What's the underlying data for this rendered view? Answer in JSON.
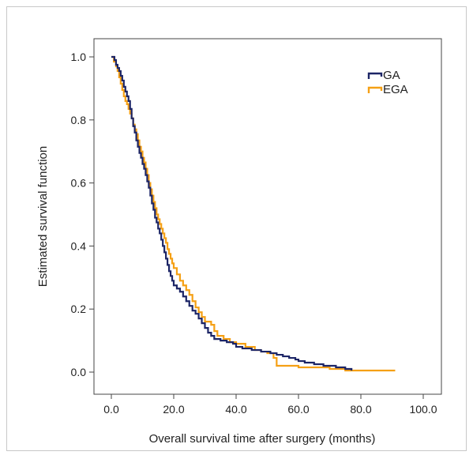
{
  "chart_data": {
    "type": "line",
    "subtype": "kaplan-meier-step",
    "title": "",
    "xlabel": "Overall survival time after surgery (months)",
    "ylabel": "Estimated survival function",
    "xlim": [
      0,
      100
    ],
    "ylim": [
      0,
      1
    ],
    "x_ticks": [
      "0.0",
      "20.0",
      "40.0",
      "60.0",
      "80.0",
      "100.0"
    ],
    "y_ticks": [
      "0.0",
      "0.2",
      "0.4",
      "0.6",
      "0.8",
      "1.0"
    ],
    "grid": false,
    "legend_position": "top-right",
    "series": [
      {
        "name": "GA",
        "color": "#1c2566",
        "points": [
          [
            0,
            1.0
          ],
          [
            1,
            0.99
          ],
          [
            1.5,
            0.975
          ],
          [
            2,
            0.965
          ],
          [
            2.5,
            0.955
          ],
          [
            3,
            0.94
          ],
          [
            3.5,
            0.925
          ],
          [
            4,
            0.905
          ],
          [
            4.5,
            0.89
          ],
          [
            5,
            0.875
          ],
          [
            5.5,
            0.86
          ],
          [
            6,
            0.835
          ],
          [
            6.5,
            0.805
          ],
          [
            7,
            0.78
          ],
          [
            7.5,
            0.76
          ],
          [
            8,
            0.735
          ],
          [
            8.5,
            0.715
          ],
          [
            9,
            0.695
          ],
          [
            9.5,
            0.68
          ],
          [
            10,
            0.66
          ],
          [
            10.5,
            0.645
          ],
          [
            11,
            0.625
          ],
          [
            11.5,
            0.605
          ],
          [
            12,
            0.585
          ],
          [
            12.5,
            0.56
          ],
          [
            13,
            0.535
          ],
          [
            13.5,
            0.515
          ],
          [
            14,
            0.49
          ],
          [
            14.5,
            0.475
          ],
          [
            15,
            0.455
          ],
          [
            15.5,
            0.44
          ],
          [
            16,
            0.42
          ],
          [
            16.5,
            0.4
          ],
          [
            17,
            0.38
          ],
          [
            17.5,
            0.36
          ],
          [
            18,
            0.34
          ],
          [
            18.5,
            0.32
          ],
          [
            19,
            0.305
          ],
          [
            19.5,
            0.29
          ],
          [
            20,
            0.275
          ],
          [
            21,
            0.265
          ],
          [
            22,
            0.255
          ],
          [
            23,
            0.24
          ],
          [
            24,
            0.225
          ],
          [
            25,
            0.21
          ],
          [
            26,
            0.195
          ],
          [
            27,
            0.185
          ],
          [
            28,
            0.17
          ],
          [
            29,
            0.155
          ],
          [
            30,
            0.14
          ],
          [
            31,
            0.125
          ],
          [
            32,
            0.115
          ],
          [
            33,
            0.105
          ],
          [
            35,
            0.1
          ],
          [
            37,
            0.095
          ],
          [
            39,
            0.09
          ],
          [
            40,
            0.08
          ],
          [
            42,
            0.075
          ],
          [
            45,
            0.07
          ],
          [
            48,
            0.065
          ],
          [
            51,
            0.06
          ],
          [
            53,
            0.055
          ],
          [
            55,
            0.05
          ],
          [
            57,
            0.045
          ],
          [
            59,
            0.04
          ],
          [
            60,
            0.035
          ],
          [
            62,
            0.03
          ],
          [
            65,
            0.025
          ],
          [
            68,
            0.02
          ],
          [
            72,
            0.015
          ],
          [
            75,
            0.01
          ],
          [
            77,
            0.005
          ]
        ]
      },
      {
        "name": "EGA",
        "color": "#f5a015",
        "points": [
          [
            0,
            1.0
          ],
          [
            0.8,
            0.985
          ],
          [
            1.5,
            0.97
          ],
          [
            2,
            0.955
          ],
          [
            2.5,
            0.935
          ],
          [
            3,
            0.915
          ],
          [
            3.5,
            0.895
          ],
          [
            4,
            0.875
          ],
          [
            4.5,
            0.86
          ],
          [
            5,
            0.85
          ],
          [
            5.5,
            0.835
          ],
          [
            6,
            0.82
          ],
          [
            6.5,
            0.805
          ],
          [
            7,
            0.785
          ],
          [
            7.5,
            0.77
          ],
          [
            8,
            0.755
          ],
          [
            8.5,
            0.735
          ],
          [
            9,
            0.715
          ],
          [
            9.5,
            0.7
          ],
          [
            10,
            0.68
          ],
          [
            10.5,
            0.665
          ],
          [
            11,
            0.645
          ],
          [
            11.5,
            0.625
          ],
          [
            12,
            0.6
          ],
          [
            12.5,
            0.58
          ],
          [
            13,
            0.56
          ],
          [
            13.5,
            0.54
          ],
          [
            14,
            0.52
          ],
          [
            14.5,
            0.5
          ],
          [
            15,
            0.485
          ],
          [
            15.5,
            0.47
          ],
          [
            16,
            0.455
          ],
          [
            16.5,
            0.44
          ],
          [
            17,
            0.425
          ],
          [
            17.5,
            0.41
          ],
          [
            18,
            0.39
          ],
          [
            18.5,
            0.375
          ],
          [
            19,
            0.36
          ],
          [
            19.5,
            0.345
          ],
          [
            20,
            0.33
          ],
          [
            21,
            0.31
          ],
          [
            22,
            0.29
          ],
          [
            23,
            0.275
          ],
          [
            24,
            0.26
          ],
          [
            25,
            0.245
          ],
          [
            26,
            0.225
          ],
          [
            27,
            0.205
          ],
          [
            28,
            0.19
          ],
          [
            29,
            0.175
          ],
          [
            30,
            0.16
          ],
          [
            32,
            0.15
          ],
          [
            33,
            0.13
          ],
          [
            34,
            0.115
          ],
          [
            36,
            0.105
          ],
          [
            38,
            0.095
          ],
          [
            40,
            0.09
          ],
          [
            43,
            0.08
          ],
          [
            46,
            0.07
          ],
          [
            48,
            0.065
          ],
          [
            50,
            0.06
          ],
          [
            52,
            0.045
          ],
          [
            53,
            0.02
          ],
          [
            55,
            0.02
          ],
          [
            60,
            0.015
          ],
          [
            65,
            0.015
          ],
          [
            70,
            0.01
          ],
          [
            75,
            0.005
          ],
          [
            91,
            0.005
          ]
        ]
      }
    ]
  }
}
